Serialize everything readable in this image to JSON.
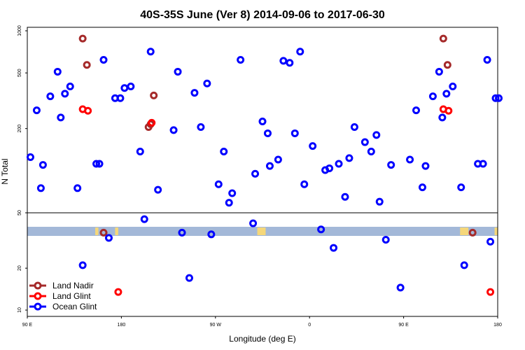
{
  "chart_data": {
    "type": "scatter",
    "title": "40S-35S June (Ver 8)   2014-09-06 to 2017-06-30",
    "xlabel": "Longitude (deg E)",
    "ylabel": "N Total",
    "x_scale": "longitude (wraps from 90E through 180 to 180)",
    "x_ticks": [
      {
        "pos": 90,
        "label": "90 E"
      },
      {
        "pos": 180,
        "label": "180"
      },
      {
        "pos": 270,
        "label": "90 W"
      },
      {
        "pos": 360,
        "label": "0"
      },
      {
        "pos": 450,
        "label": "90 E"
      },
      {
        "pos": 540,
        "label": "180"
      }
    ],
    "xlim": [
      90,
      540
    ],
    "y_scale": "log",
    "upper_panel": {
      "ylim": [
        50,
        1000
      ],
      "y_ticks": [
        {
          "v": 50,
          "label": "50"
        },
        {
          "v": 200,
          "label": "200"
        },
        {
          "v": 500,
          "label": "500"
        },
        {
          "v": 1000,
          "label": "1000"
        }
      ]
    },
    "lower_panel": {
      "ylim": [
        9,
        50
      ],
      "y_ticks": [
        {
          "v": 10,
          "label": "10"
        },
        {
          "v": 20,
          "label": "20"
        },
        {
          "v": 50,
          "label": "50"
        }
      ]
    },
    "series": [
      {
        "name": "Land Nadir",
        "color": "#a52a2a",
        "points": [
          [
            143,
            880
          ],
          [
            147,
            570
          ],
          [
            163,
            36
          ],
          [
            211,
            345
          ],
          [
            206,
            205
          ],
          [
            208,
            215
          ],
          [
            488,
            880
          ],
          [
            492,
            570
          ],
          [
            516,
            36
          ]
        ]
      },
      {
        "name": "Land Glint",
        "color": "#ff0000",
        "points": [
          [
            143,
            275
          ],
          [
            148,
            268
          ],
          [
            177,
            13.5
          ],
          [
            209,
            220
          ],
          [
            488,
            275
          ],
          [
            493,
            268
          ],
          [
            533,
            13.5
          ]
        ]
      },
      {
        "name": "Ocean Glint",
        "color": "#0000ff",
        "points": [
          [
            93,
            125
          ],
          [
            99,
            270
          ],
          [
            103,
            75
          ],
          [
            105,
            110
          ],
          [
            112,
            340
          ],
          [
            119,
            510
          ],
          [
            122,
            240
          ],
          [
            126,
            355
          ],
          [
            131,
            400
          ],
          [
            138,
            75
          ],
          [
            143,
            21
          ],
          [
            156,
            112
          ],
          [
            159,
            112
          ],
          [
            163,
            620
          ],
          [
            168,
            33
          ],
          [
            174,
            330
          ],
          [
            179,
            330
          ],
          [
            183,
            390
          ],
          [
            189,
            400
          ],
          [
            198,
            137
          ],
          [
            202,
            45
          ],
          [
            208,
            710
          ],
          [
            215,
            73
          ],
          [
            230,
            195
          ],
          [
            234,
            510
          ],
          [
            238,
            36
          ],
          [
            245,
            17
          ],
          [
            250,
            360
          ],
          [
            256,
            205
          ],
          [
            262,
            420
          ],
          [
            266,
            35
          ],
          [
            273,
            80
          ],
          [
            278,
            137
          ],
          [
            283,
            59
          ],
          [
            286,
            69
          ],
          [
            294,
            620
          ],
          [
            306,
            42
          ],
          [
            308,
            95
          ],
          [
            315,
            225
          ],
          [
            320,
            185
          ],
          [
            322,
            108
          ],
          [
            330,
            120
          ],
          [
            335,
            610
          ],
          [
            341,
            590
          ],
          [
            346,
            185
          ],
          [
            351,
            710
          ],
          [
            355,
            80
          ],
          [
            363,
            150
          ],
          [
            371,
            38
          ],
          [
            375,
            101
          ],
          [
            379,
            104
          ],
          [
            383,
            28
          ],
          [
            388,
            112
          ],
          [
            394,
            65
          ],
          [
            398,
            123
          ],
          [
            403,
            205
          ],
          [
            413,
            160
          ],
          [
            419,
            137
          ],
          [
            424,
            180
          ],
          [
            427,
            60
          ],
          [
            433,
            32
          ],
          [
            438,
            110
          ],
          [
            447,
            14.5
          ],
          [
            456,
            120
          ],
          [
            462,
            270
          ],
          [
            468,
            76
          ],
          [
            471,
            108
          ],
          [
            478,
            340
          ],
          [
            484,
            510
          ],
          [
            487,
            240
          ],
          [
            491,
            355
          ],
          [
            497,
            400
          ],
          [
            505,
            76
          ],
          [
            508,
            21
          ],
          [
            521,
            112
          ],
          [
            526,
            112
          ],
          [
            530,
            620
          ],
          [
            533,
            31
          ],
          [
            538,
            330
          ],
          [
            541,
            330
          ]
        ]
      }
    ],
    "legend": {
      "placement": "bottom-left",
      "entries": [
        "Land Nadir",
        "Land Glint",
        "Ocean Glint"
      ]
    },
    "land_colors": {
      "ocean": "#a3b8d8",
      "land": "#f5d77a"
    }
  }
}
